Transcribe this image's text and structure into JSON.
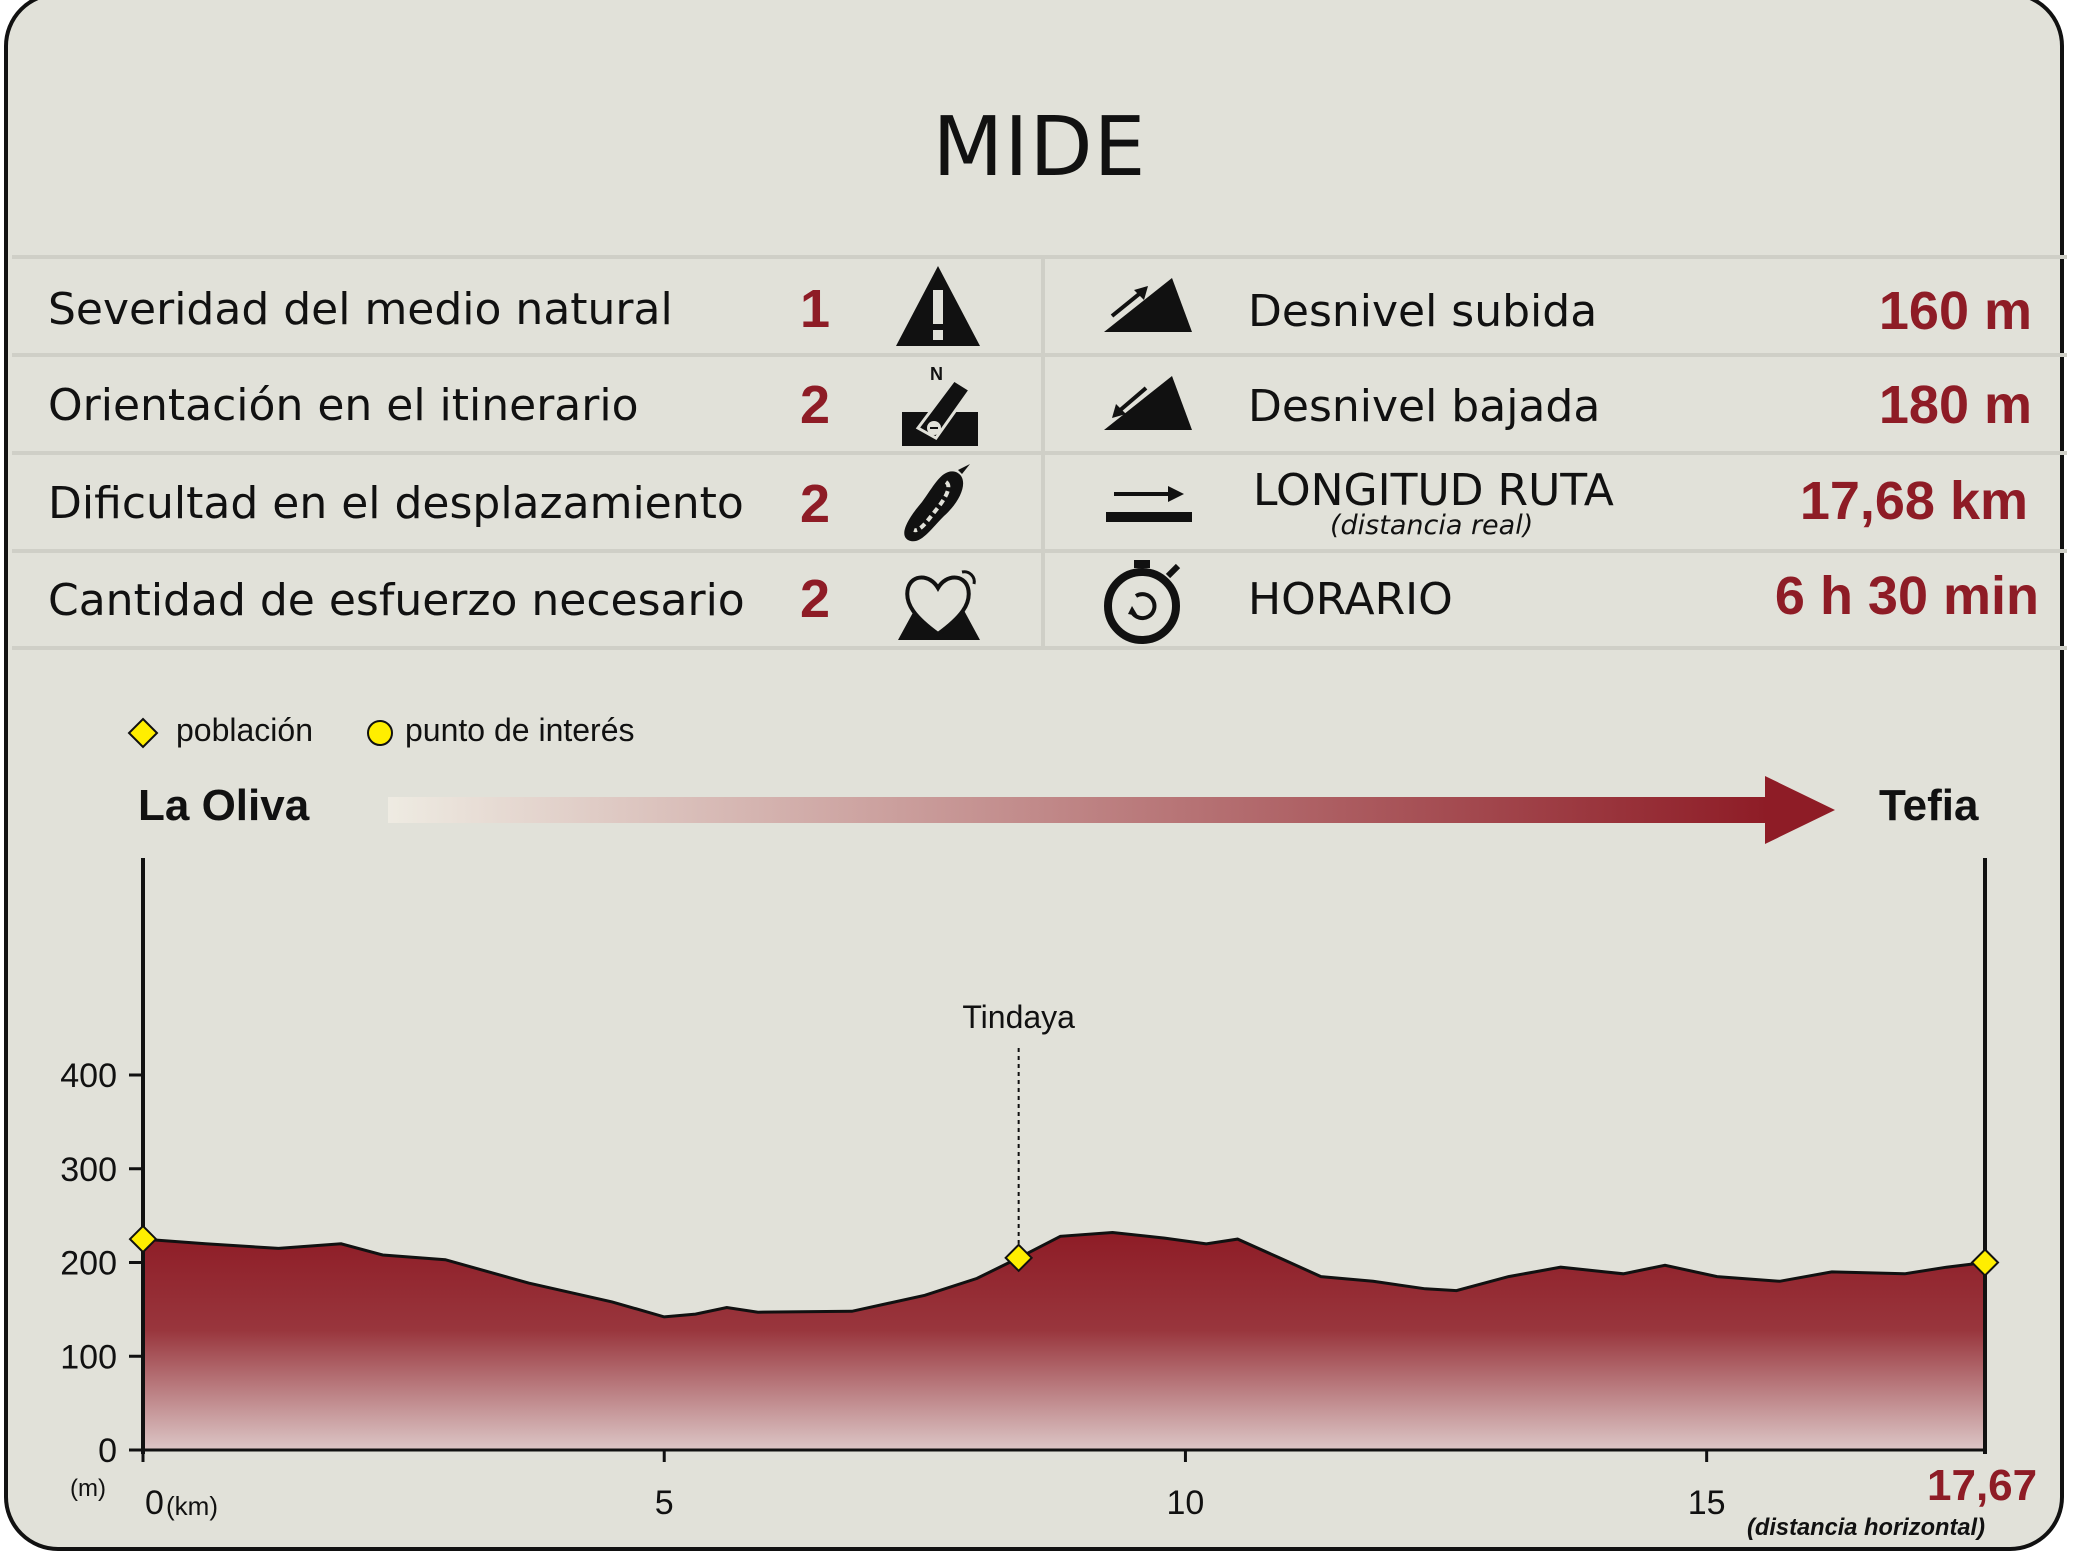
{
  "title": "MIDE",
  "mide": [
    {
      "label": "Severidad del medio natural",
      "value": "1",
      "icon": "warning-icon"
    },
    {
      "label": "Orientación en el itinerario",
      "value": "2",
      "icon": "compass-icon"
    },
    {
      "label": "Dificultad en el desplazamiento",
      "value": "2",
      "icon": "footprint-icon"
    },
    {
      "label": "Cantidad de esfuerzo necesario",
      "value": "2",
      "icon": "heart-effort-icon"
    }
  ],
  "stats": [
    {
      "label": "Desnivel subida",
      "sublabel": "",
      "value": "160 m",
      "icon": "ascent-icon"
    },
    {
      "label": "Desnivel bajada",
      "sublabel": "",
      "value": "180 m",
      "icon": "descent-icon"
    },
    {
      "label": "LONGITUD RUTA",
      "sublabel": "(distancia real)",
      "value": "17,68 km",
      "icon": "distance-arrow-icon"
    },
    {
      "label": "HORARIO",
      "sublabel": "",
      "value": "6 h 30 min",
      "icon": "stopwatch-icon"
    }
  ],
  "legend": {
    "town": "población",
    "poi": "punto de interés"
  },
  "route": {
    "start": "La Oliva",
    "end": "Tefia"
  },
  "colors": {
    "accent": "#8e1c26",
    "marker": "#ffee00",
    "background": "#e1e1d9"
  },
  "chart_data": {
    "type": "area",
    "xlabel": "(km)",
    "ylabel": "(m)",
    "xlim": [
      0,
      17.67
    ],
    "ylim": [
      0,
      400
    ],
    "x_ticks": [
      0,
      5,
      10,
      15
    ],
    "y_ticks": [
      0,
      100,
      200,
      300,
      400
    ],
    "end_label": "17,67",
    "end_sublabel": "(distancia horizontal)",
    "points": [
      [
        0,
        225
      ],
      [
        0.6,
        220
      ],
      [
        1.3,
        215
      ],
      [
        1.9,
        220
      ],
      [
        2.3,
        208
      ],
      [
        2.9,
        203
      ],
      [
        3.7,
        178
      ],
      [
        4.5,
        158
      ],
      [
        5.0,
        142
      ],
      [
        5.3,
        145
      ],
      [
        5.6,
        152
      ],
      [
        5.9,
        147
      ],
      [
        6.8,
        148
      ],
      [
        7.5,
        165
      ],
      [
        8.0,
        183
      ],
      [
        8.4,
        205
      ],
      [
        8.8,
        228
      ],
      [
        9.3,
        232
      ],
      [
        9.8,
        226
      ],
      [
        10.2,
        220
      ],
      [
        10.5,
        225
      ],
      [
        10.9,
        205
      ],
      [
        11.3,
        185
      ],
      [
        11.8,
        180
      ],
      [
        12.3,
        172
      ],
      [
        12.6,
        170
      ],
      [
        13.1,
        185
      ],
      [
        13.6,
        195
      ],
      [
        14.2,
        188
      ],
      [
        14.6,
        197
      ],
      [
        15.1,
        185
      ],
      [
        15.7,
        180
      ],
      [
        16.2,
        190
      ],
      [
        16.9,
        188
      ],
      [
        17.3,
        195
      ],
      [
        17.67,
        200
      ]
    ],
    "markers": [
      {
        "x": 0,
        "y": 225,
        "kind": "town",
        "label": ""
      },
      {
        "x": 8.4,
        "y": 205,
        "kind": "town",
        "label": "Tindaya"
      },
      {
        "x": 17.67,
        "y": 200,
        "kind": "town",
        "label": ""
      }
    ]
  }
}
